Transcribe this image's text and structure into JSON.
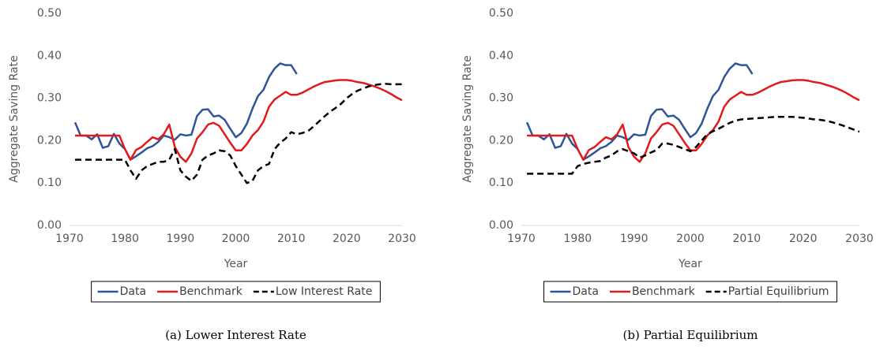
{
  "chart_data": [
    {
      "type": "line",
      "caption": "(a) Lower Interest Rate",
      "ylabel": "Aggregate Saving Rate",
      "xlabel": "Year",
      "x": [
        1971,
        1972,
        1973,
        1974,
        1975,
        1976,
        1977,
        1978,
        1979,
        1980,
        1981,
        1982,
        1983,
        1984,
        1985,
        1986,
        1987,
        1988,
        1989,
        1990,
        1991,
        1992,
        1993,
        1994,
        1995,
        1996,
        1997,
        1998,
        1999,
        2000,
        2001,
        2002,
        2003,
        2004,
        2005,
        2006,
        2007,
        2008,
        2009,
        2010,
        2011,
        2012,
        2013,
        2014,
        2015,
        2016,
        2017,
        2018,
        2019,
        2020,
        2021,
        2022,
        2023,
        2024,
        2025,
        2026,
        2027,
        2028,
        2029,
        2030
      ],
      "xlim": [
        1970,
        2030
      ],
      "xticks": [
        1970,
        1980,
        1990,
        2000,
        2010,
        2020,
        2030
      ],
      "ylim": [
        0,
        0.5
      ],
      "yticks": [
        {
          "value": 0,
          "label": "0.00"
        },
        {
          "value": 0.1,
          "label": "0.10"
        },
        {
          "value": 0.2,
          "label": "0.20"
        },
        {
          "value": 0.3,
          "label": "0.30"
        },
        {
          "value": 0.4,
          "label": "0.40"
        },
        {
          "value": 0.5,
          "label": "0.50"
        }
      ],
      "series": [
        {
          "name": "Data",
          "color": "#2f5597",
          "style": "solid",
          "values": [
            0.243,
            0.212,
            0.212,
            0.203,
            0.215,
            0.183,
            0.187,
            0.216,
            0.193,
            0.18,
            0.155,
            0.163,
            0.172,
            0.182,
            0.187,
            0.197,
            0.212,
            0.208,
            0.202,
            0.215,
            0.212,
            0.214,
            0.258,
            0.273,
            0.274,
            0.257,
            0.259,
            0.249,
            0.228,
            0.208,
            0.218,
            0.24,
            0.275,
            0.305,
            0.32,
            0.35,
            0.37,
            0.382,
            0.378,
            0.378,
            0.357,
            null,
            null,
            null,
            null,
            null,
            null,
            null,
            null,
            null,
            null,
            null,
            null,
            null,
            null,
            null,
            null,
            null,
            null,
            null
          ]
        },
        {
          "name": "Benchmark",
          "color": "#e31a1c",
          "style": "solid",
          "values": [
            0.212,
            0.212,
            0.212,
            0.212,
            0.212,
            0.212,
            0.212,
            0.212,
            0.212,
            0.18,
            0.155,
            0.178,
            0.185,
            0.197,
            0.208,
            0.203,
            0.215,
            0.238,
            0.185,
            0.162,
            0.15,
            0.17,
            0.205,
            0.22,
            0.238,
            0.242,
            0.235,
            0.215,
            0.195,
            0.177,
            0.177,
            0.192,
            0.212,
            0.225,
            0.245,
            0.28,
            0.297,
            0.306,
            0.315,
            0.308,
            0.308,
            0.313,
            0.32,
            0.327,
            0.333,
            0.338,
            0.34,
            0.342,
            0.343,
            0.343,
            0.341,
            0.338,
            0.336,
            0.332,
            0.328,
            0.323,
            0.317,
            0.31,
            0.302,
            0.295
          ]
        },
        {
          "name": "Low Interest Rate",
          "color": "#000000",
          "style": "dashed",
          "values": [
            0.155,
            0.155,
            0.155,
            0.155,
            0.155,
            0.155,
            0.155,
            0.155,
            0.155,
            0.155,
            0.13,
            0.11,
            0.13,
            0.14,
            0.145,
            0.15,
            0.15,
            0.155,
            0.18,
            0.13,
            0.115,
            0.105,
            0.12,
            0.155,
            0.165,
            0.17,
            0.177,
            0.175,
            0.165,
            0.14,
            0.12,
            0.1,
            0.105,
            0.13,
            0.14,
            0.145,
            0.18,
            0.195,
            0.205,
            0.22,
            0.215,
            0.218,
            0.222,
            0.233,
            0.245,
            0.257,
            0.268,
            0.277,
            0.287,
            0.3,
            0.31,
            0.318,
            0.323,
            0.328,
            0.331,
            0.333,
            0.334,
            0.333,
            0.333,
            0.333
          ]
        }
      ]
    },
    {
      "type": "line",
      "caption": "(b) Partial Equilibrium",
      "ylabel": "Aggregate Saving Rate",
      "xlabel": "Year",
      "x": [
        1971,
        1972,
        1973,
        1974,
        1975,
        1976,
        1977,
        1978,
        1979,
        1980,
        1981,
        1982,
        1983,
        1984,
        1985,
        1986,
        1987,
        1988,
        1989,
        1990,
        1991,
        1992,
        1993,
        1994,
        1995,
        1996,
        1997,
        1998,
        1999,
        2000,
        2001,
        2002,
        2003,
        2004,
        2005,
        2006,
        2007,
        2008,
        2009,
        2010,
        2011,
        2012,
        2013,
        2014,
        2015,
        2016,
        2017,
        2018,
        2019,
        2020,
        2021,
        2022,
        2023,
        2024,
        2025,
        2026,
        2027,
        2028,
        2029,
        2030
      ],
      "xlim": [
        1970,
        2030
      ],
      "xticks": [
        1970,
        1980,
        1990,
        2000,
        2010,
        2020,
        2030
      ],
      "ylim": [
        0,
        0.5
      ],
      "yticks": [
        {
          "value": 0,
          "label": "0.00"
        },
        {
          "value": 0.1,
          "label": "0.10"
        },
        {
          "value": 0.2,
          "label": "0.20"
        },
        {
          "value": 0.3,
          "label": "0.30"
        },
        {
          "value": 0.4,
          "label": "0.40"
        },
        {
          "value": 0.5,
          "label": "0.50"
        }
      ],
      "series": [
        {
          "name": "Data",
          "color": "#2f5597",
          "style": "solid",
          "values": [
            0.243,
            0.212,
            0.212,
            0.203,
            0.215,
            0.183,
            0.187,
            0.216,
            0.193,
            0.18,
            0.155,
            0.163,
            0.172,
            0.182,
            0.187,
            0.197,
            0.212,
            0.208,
            0.202,
            0.215,
            0.212,
            0.214,
            0.258,
            0.273,
            0.274,
            0.257,
            0.259,
            0.249,
            0.228,
            0.208,
            0.218,
            0.24,
            0.275,
            0.305,
            0.32,
            0.35,
            0.37,
            0.382,
            0.378,
            0.378,
            0.357,
            null,
            null,
            null,
            null,
            null,
            null,
            null,
            null,
            null,
            null,
            null,
            null,
            null,
            null,
            null,
            null,
            null,
            null,
            null
          ]
        },
        {
          "name": "Benchmark",
          "color": "#e31a1c",
          "style": "solid",
          "values": [
            0.212,
            0.212,
            0.212,
            0.212,
            0.212,
            0.212,
            0.212,
            0.212,
            0.212,
            0.18,
            0.155,
            0.178,
            0.185,
            0.197,
            0.208,
            0.203,
            0.215,
            0.238,
            0.185,
            0.162,
            0.15,
            0.17,
            0.205,
            0.22,
            0.238,
            0.242,
            0.235,
            0.215,
            0.195,
            0.177,
            0.177,
            0.192,
            0.212,
            0.225,
            0.245,
            0.28,
            0.297,
            0.306,
            0.315,
            0.308,
            0.308,
            0.313,
            0.32,
            0.327,
            0.333,
            0.338,
            0.34,
            0.342,
            0.343,
            0.343,
            0.341,
            0.338,
            0.336,
            0.332,
            0.328,
            0.323,
            0.317,
            0.31,
            0.302,
            0.295
          ]
        },
        {
          "name": "Partial Equilibrium",
          "color": "#000000",
          "style": "dashed",
          "values": [
            0.122,
            0.122,
            0.122,
            0.122,
            0.122,
            0.122,
            0.122,
            0.122,
            0.122,
            0.14,
            0.145,
            0.148,
            0.15,
            0.152,
            0.16,
            0.165,
            0.175,
            0.18,
            0.175,
            0.17,
            0.16,
            0.165,
            0.172,
            0.178,
            0.193,
            0.193,
            0.19,
            0.185,
            0.18,
            0.175,
            0.185,
            0.2,
            0.215,
            0.222,
            0.228,
            0.235,
            0.242,
            0.247,
            0.25,
            0.251,
            0.252,
            0.253,
            0.254,
            0.255,
            0.256,
            0.256,
            0.256,
            0.256,
            0.255,
            0.254,
            0.252,
            0.25,
            0.249,
            0.247,
            0.244,
            0.24,
            0.236,
            0.231,
            0.226,
            0.221
          ]
        }
      ]
    }
  ]
}
